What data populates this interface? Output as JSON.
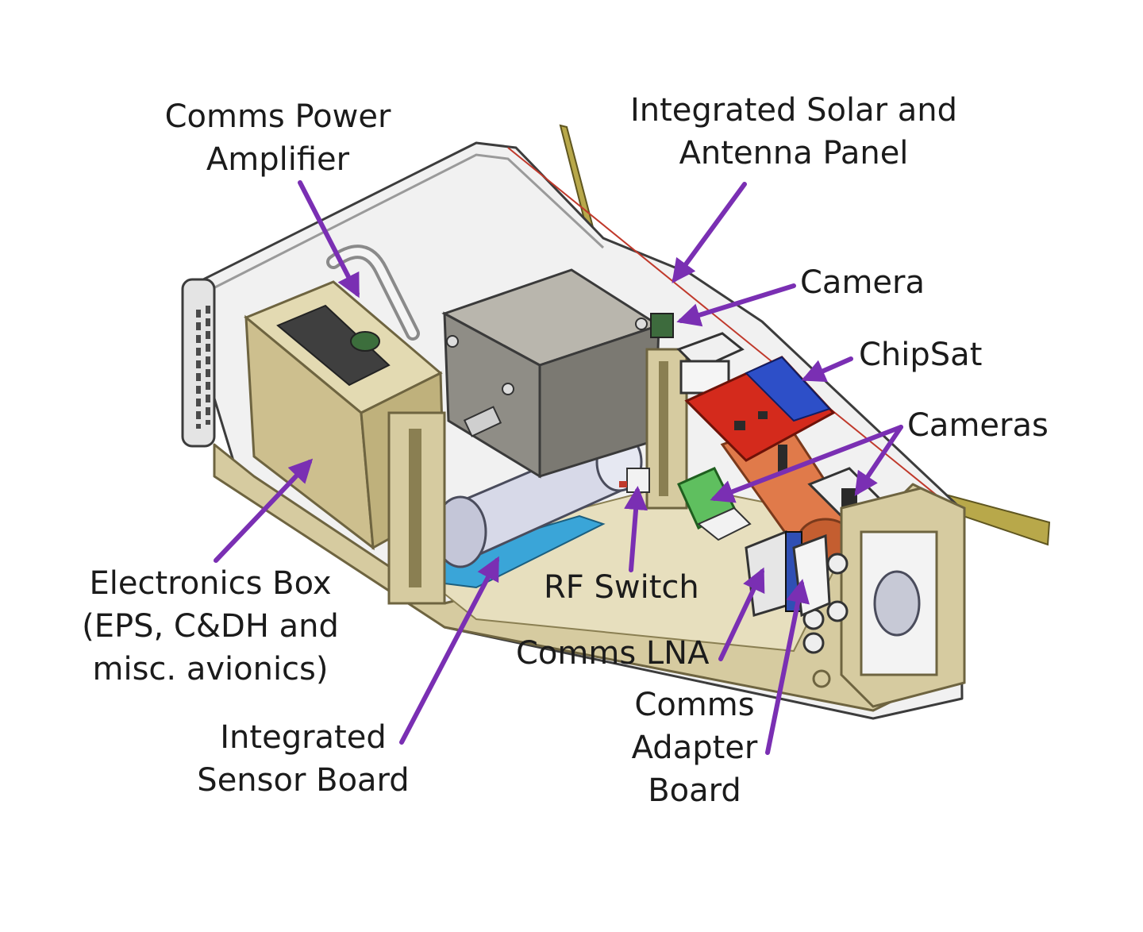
{
  "labels": {
    "comms_power_amplifier": [
      "Comms Power",
      "Amplifier"
    ],
    "solar_antenna_panel": [
      "Integrated Solar and",
      "Antenna Panel"
    ],
    "camera": [
      "Camera"
    ],
    "chipsat": [
      "ChipSat"
    ],
    "cameras": [
      "Cameras"
    ],
    "electronics_box": [
      "Electronics Box",
      "(EPS, C&DH and",
      "misc. avionics)"
    ],
    "rf_switch": [
      "RF Switch"
    ],
    "comms_lna": [
      "Comms LNA"
    ],
    "integrated_sensor_board": [
      "Integrated",
      "Sensor Board"
    ],
    "comms_adapter_board": [
      "Comms",
      "Adapter",
      "Board"
    ]
  },
  "colors": {
    "arrow": "#7a2fb3",
    "frame": "#d6cba0",
    "frame_edge": "#6e6440",
    "housing": "#ececec",
    "tank": "#8f8d86",
    "cylinder": "#d7d9e8",
    "pcb_red": "#d42a1c",
    "pcb_blue": "#2d4fc8",
    "sensor_board": "#3aa5d8",
    "copper": "#e07a4a",
    "green_board": "#5fbf5f",
    "panel": "#b8a84a"
  }
}
